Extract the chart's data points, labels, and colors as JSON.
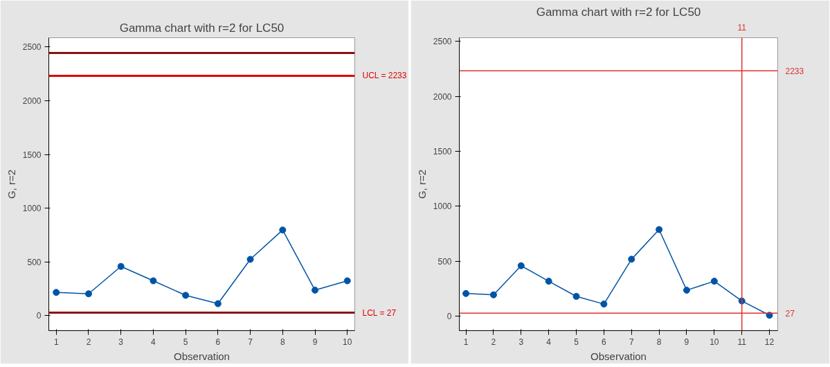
{
  "chart_data": [
    {
      "type": "line",
      "title": "Gamma chart with r=2 for LC50",
      "xlabel": "Observation",
      "ylabel": "G, r=2",
      "x": [
        1,
        2,
        3,
        4,
        5,
        6,
        7,
        8,
        9,
        10
      ],
      "series": [
        {
          "color": "#0054a6",
          "values": [
            216,
            203,
            458,
            324,
            189,
            111,
            524,
            797,
            237,
            324
          ]
        }
      ],
      "xlim": [
        0.77,
        10.23
      ],
      "xticks": [
        1,
        2,
        3,
        4,
        5,
        6,
        7,
        8,
        9,
        10
      ],
      "ylim": [
        -140,
        2587
      ],
      "yticks": [
        0,
        500,
        1000,
        1500,
        2000,
        2500
      ],
      "ref_lines": [
        {
          "axis": "y",
          "value": 2445,
          "label": null,
          "color": "#8b1010"
        },
        {
          "axis": "y",
          "value": 2233,
          "label": "UCL = 2233",
          "color": "#e00000"
        },
        {
          "axis": "y",
          "value": 27,
          "label": "LCL = 27",
          "color": "#8b1010"
        }
      ],
      "marker": "circle",
      "line_style": "solid",
      "grid": false
    },
    {
      "type": "line",
      "title": "Gamma chart with r=2 for LC50",
      "xlabel": "Observation",
      "ylabel": "G, r=2",
      "x": [
        1,
        2,
        3,
        4,
        5,
        6,
        7,
        8,
        9,
        10,
        11,
        12
      ],
      "series": [
        {
          "color": "#0054a6",
          "values": [
            206,
            194,
            459,
            318,
            180,
            110,
            518,
            788,
            236,
            318,
            138,
            8
          ]
        }
      ],
      "xlim": [
        0.76,
        12.3
      ],
      "xticks": [
        1,
        2,
        3,
        4,
        5,
        6,
        7,
        8,
        9,
        10,
        11,
        12
      ],
      "ylim": [
        -132,
        2534
      ],
      "yticks": [
        0,
        500,
        1000,
        1500,
        2000,
        2500
      ],
      "ref_lines": [
        {
          "axis": "y",
          "value": 2233,
          "label": "2233",
          "color": "#e03030"
        },
        {
          "axis": "y",
          "value": 27,
          "label": "27",
          "color": "#e03030"
        },
        {
          "axis": "x",
          "value": 11,
          "label": "11",
          "color": "#e03030"
        }
      ],
      "marker": "circle",
      "line_style": "solid",
      "grid": false
    }
  ]
}
